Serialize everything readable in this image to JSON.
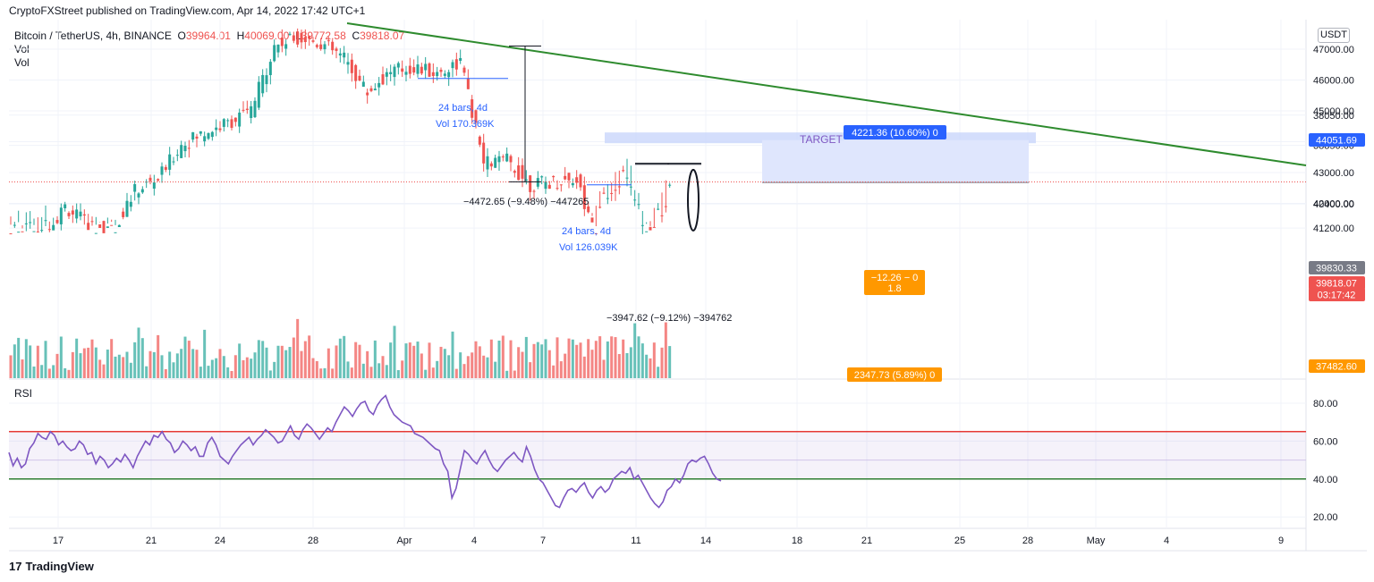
{
  "header": {
    "published_text": "CryptoFXStreet published on TradingView.com, Apr 14, 2022 17:42 UTC+1"
  },
  "legend": {
    "symbol": "Bitcoin / TetherUS, 4h, BINANCE",
    "open_key": "O",
    "open": "39964.01",
    "high_key": "H",
    "high": "40069.00",
    "low_key": "L",
    "low": "39772.58",
    "close_key": "C",
    "close": "39818.07",
    "vol1": "Vol",
    "vol2": "Vol"
  },
  "rsi_label": "RSI",
  "unit": "USDT",
  "footer": {
    "logo_mark": "17",
    "logo_text": "TradingView"
  },
  "colors": {
    "up": "#26a69a",
    "down": "#ef5350",
    "trendline": "#2e8b2e",
    "rsi": "#7e57c2",
    "rsi_upper": "#e53935",
    "rsi_lower": "#2e7d32",
    "target_box": "#dfe6fd",
    "stop_box": "#fde8cc"
  },
  "chart_data": [
    {
      "type": "candlestick",
      "title": "Bitcoin / TetherUS, 4h, BINANCE",
      "ylim": [
        37000,
        47500
      ],
      "y_ticks": [
        "47000.00",
        "46000.00",
        "45000.00",
        "44000.00",
        "43000.00",
        "42000.00",
        "41200.00",
        "40400.00",
        "38850.00",
        "38050.00"
      ],
      "x_ticks": [
        "17",
        "21",
        "24",
        "28",
        "Apr",
        "4",
        "7",
        "11",
        "14",
        "18",
        "21",
        "25",
        "28",
        "May",
        "4",
        "9"
      ],
      "price_badges": [
        {
          "label": "44051.69",
          "value": 44051.69,
          "color": "#2962ff"
        },
        {
          "label": "39830.33",
          "value": 39830.33,
          "color": "#787b86"
        },
        {
          "label": "39818.07",
          "value": 39818.07,
          "color": "#ef5350"
        },
        {
          "label": "03:17:42",
          "value": 39580,
          "color": "#ef5350"
        },
        {
          "label": "37482.60",
          "value": 37482.6,
          "color": "#ff9800"
        }
      ],
      "close_approx": [
        {
          "x": "Mar 14",
          "y": 39900
        },
        {
          "x": "Mar 15",
          "y": 39300
        },
        {
          "x": "Mar 16",
          "y": 40900
        },
        {
          "x": "Mar 17",
          "y": 41000
        },
        {
          "x": "Mar 18",
          "y": 40900
        },
        {
          "x": "Mar 19",
          "y": 41900
        },
        {
          "x": "Mar 20",
          "y": 41300
        },
        {
          "x": "Mar 21",
          "y": 41100
        },
        {
          "x": "Mar 22",
          "y": 42400
        },
        {
          "x": "Mar 23",
          "y": 42800
        },
        {
          "x": "Mar 24",
          "y": 43900
        },
        {
          "x": "Mar 25",
          "y": 44300
        },
        {
          "x": "Mar 26",
          "y": 44600
        },
        {
          "x": "Mar 27",
          "y": 45000
        },
        {
          "x": "Mar 28",
          "y": 47100
        },
        {
          "x": "Mar 29",
          "y": 47400
        },
        {
          "x": "Mar 30",
          "y": 47200
        },
        {
          "x": "Mar 31",
          "y": 46700
        },
        {
          "x": "Apr 1",
          "y": 45600
        },
        {
          "x": "Apr 2",
          "y": 46300
        },
        {
          "x": "Apr 3",
          "y": 46400
        },
        {
          "x": "Apr 4",
          "y": 46200
        },
        {
          "x": "Apr 5",
          "y": 46600
        },
        {
          "x": "Apr 6",
          "y": 43300
        },
        {
          "x": "Apr 7",
          "y": 43400
        },
        {
          "x": "Apr 8",
          "y": 42600
        },
        {
          "x": "Apr 9",
          "y": 42700
        },
        {
          "x": "Apr 10",
          "y": 42800
        },
        {
          "x": "Apr 11",
          "y": 40300
        },
        {
          "x": "Apr 12",
          "y": 39600
        },
        {
          "x": "Apr 13",
          "y": 41100
        },
        {
          "x": "Apr 14",
          "y": 39818
        }
      ],
      "annotations": [
        {
          "text": "24 bars, 4d"
        },
        {
          "text": "Vol 170.369K"
        },
        {
          "text": "−4472.65 (−9.48%) −447265"
        },
        {
          "text": "24 bars, 4d"
        },
        {
          "text": "Vol 126.039K"
        },
        {
          "text": "−3947.62 (−9.12%) −394762"
        },
        {
          "text": "TARGET"
        },
        {
          "text": "4221.36 (10.60%) 0"
        },
        {
          "text": "−12.26 − 0"
        },
        {
          "text": "1.8"
        },
        {
          "text": "2347.73 (5.89%) 0"
        }
      ]
    },
    {
      "type": "line",
      "title": "RSI",
      "ylim": [
        15,
        90
      ],
      "y_ticks": [
        "80.00",
        "60.00",
        "40.00",
        "20.00"
      ],
      "upper_band": 65,
      "lower_band": 40,
      "mid_line": 50,
      "values": [
        54,
        47,
        51,
        46,
        48,
        56,
        59,
        64,
        62,
        61,
        65,
        63,
        58,
        60,
        57,
        55,
        56,
        60,
        58,
        53,
        54,
        48,
        52,
        50,
        46,
        48,
        51,
        49,
        53,
        50,
        46,
        52,
        56,
        60,
        58,
        63,
        62,
        65,
        61,
        59,
        54,
        56,
        60,
        58,
        55,
        57,
        52,
        52,
        59,
        62,
        58,
        52,
        50,
        48,
        52,
        55,
        58,
        60,
        62,
        58,
        61,
        63,
        66,
        64,
        62,
        59,
        60,
        64,
        68,
        63,
        61,
        66,
        69,
        67,
        64,
        61,
        64,
        67,
        65,
        70,
        74,
        78,
        76,
        73,
        77,
        80,
        81,
        76,
        74,
        79,
        82,
        84,
        78,
        74,
        72,
        70,
        69,
        68,
        64,
        63,
        62,
        60,
        58,
        56,
        55,
        48,
        44,
        30,
        35,
        45,
        55,
        53,
        50,
        48,
        52,
        55,
        50,
        46,
        44,
        47,
        50,
        52,
        54,
        51,
        49,
        57,
        52,
        45,
        40,
        38,
        34,
        30,
        26,
        25,
        30,
        34,
        35,
        33,
        36,
        38,
        33,
        30,
        34,
        36,
        33,
        35,
        40,
        42,
        44,
        43,
        46,
        40,
        42,
        38,
        34,
        30,
        27,
        25,
        28,
        34,
        36,
        40,
        38,
        42,
        48,
        50,
        49,
        51,
        52,
        48,
        43,
        40,
        39
      ]
    }
  ]
}
